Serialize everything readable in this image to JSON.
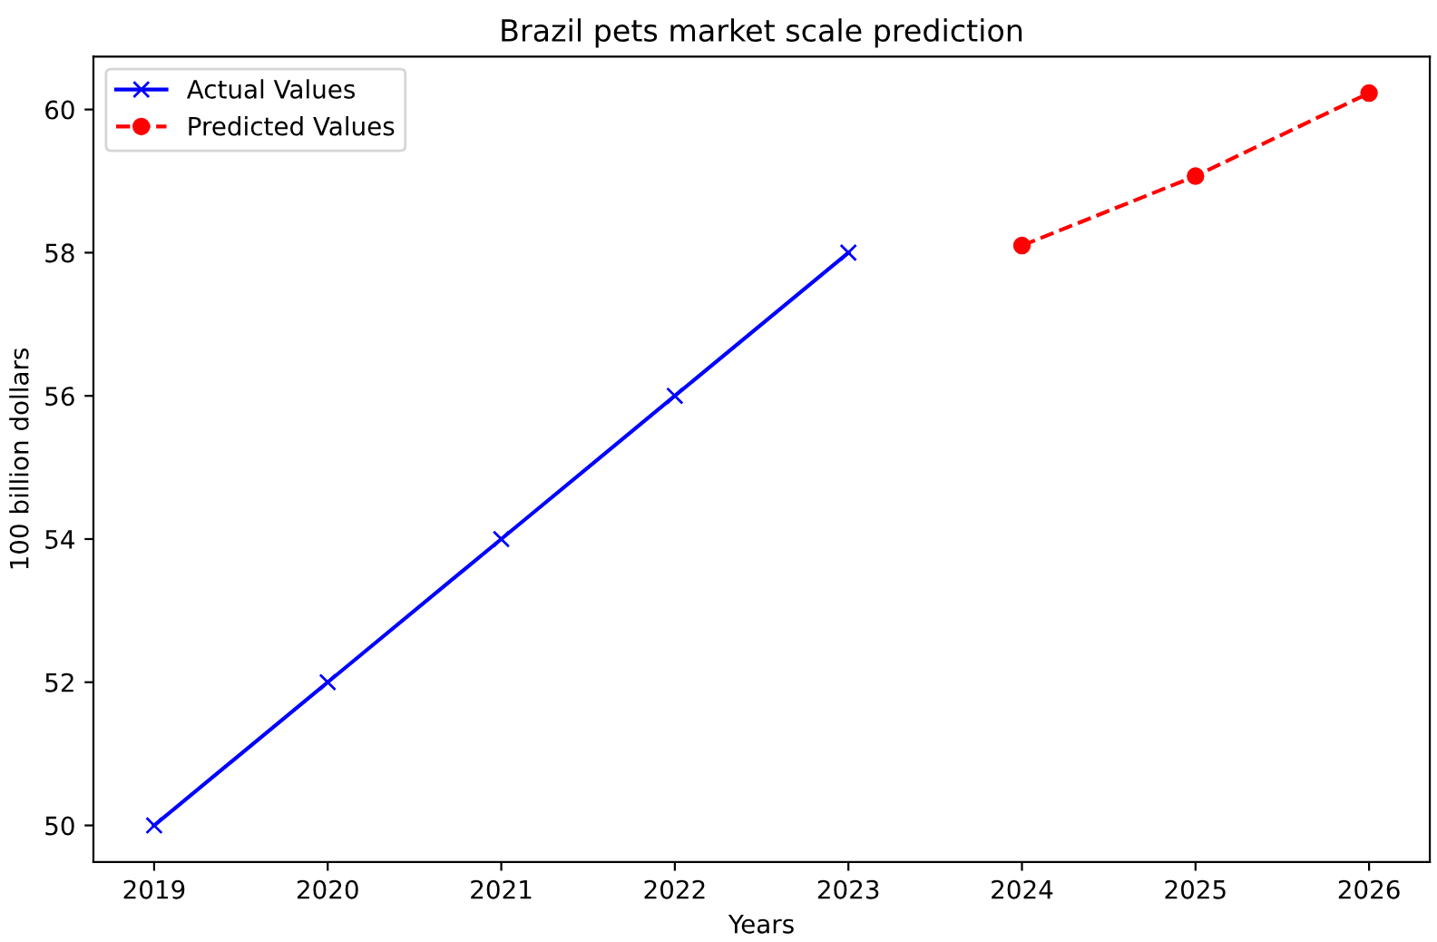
{
  "chart_data": {
    "type": "line",
    "title": "Brazil pets market scale prediction",
    "xlabel": "Years",
    "ylabel": "100 billion dollars",
    "xlim": [
      2018.65,
      2026.35
    ],
    "xticks": [
      2019,
      2020,
      2021,
      2022,
      2023,
      2024,
      2025,
      2026
    ],
    "ylim": [
      49.49,
      60.74
    ],
    "yticks": [
      50,
      52,
      54,
      56,
      58,
      60
    ],
    "grid": false,
    "legend": "top left",
    "series": [
      {
        "name": "Actual Values",
        "color": "#0000ff",
        "x": [
          2019,
          2020,
          2021,
          2022,
          2023
        ],
        "values": [
          50,
          52,
          54,
          56,
          58
        ],
        "marker": "cross",
        "line_style": "solid"
      },
      {
        "name": "Predicted Values",
        "color": "#ff0000",
        "x": [
          2024,
          2025,
          2026
        ],
        "values": [
          58.1,
          59.07,
          60.23
        ],
        "marker": "circle",
        "line_style": "dashed"
      }
    ]
  }
}
